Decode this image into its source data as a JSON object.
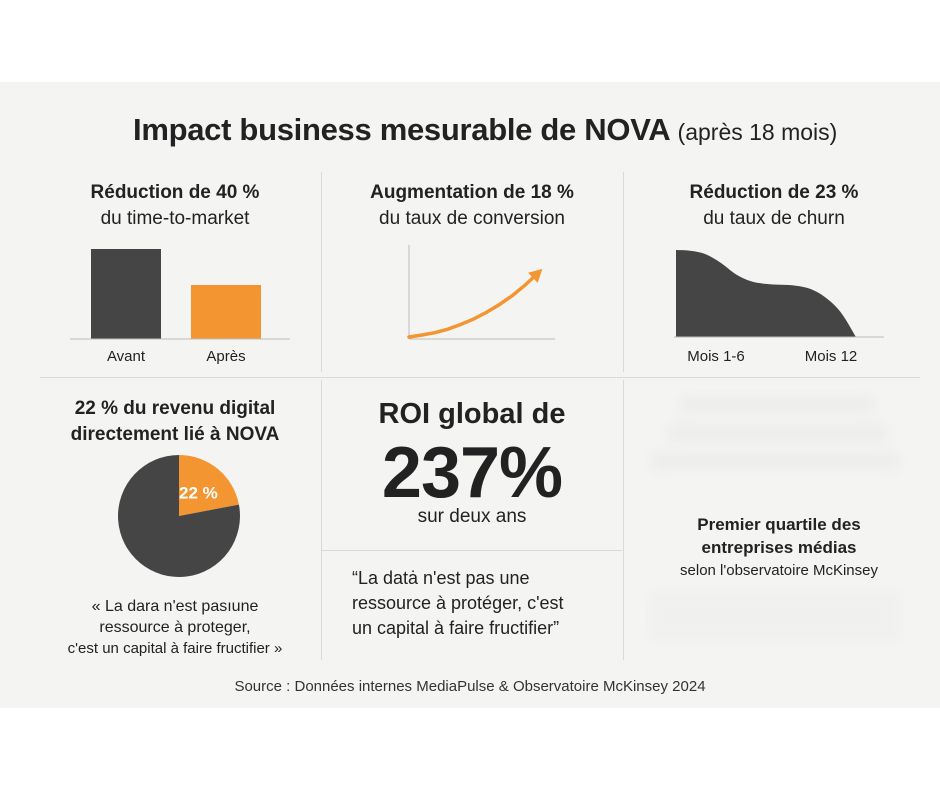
{
  "title": {
    "main": "Impact business mesurable de NOVA",
    "sub": "(après 18 mois)"
  },
  "colors": {
    "dark": "#454545",
    "orange": "#f39530",
    "panel": "#f4f4f3"
  },
  "cards": {
    "ttm": {
      "line1": "Réduction de 40 %",
      "line2": "du time-to-market"
    },
    "conversion": {
      "line1": "Augmentation de 18 %",
      "line2": "du taux de conversion"
    },
    "churn": {
      "line1": "Réduction de 23 %",
      "line2": "du taux de churn"
    },
    "revenue": {
      "line1": "22 % du revenu digital",
      "line2": "directement lié à NOVA"
    },
    "roi": {
      "label": "ROI global de",
      "value": "237%",
      "sub": "sur deux ans"
    },
    "mckinsey": {
      "line1": "Premier quartile des",
      "line2": "entreprises médias",
      "line3": "selon l'observatoire McKinsey"
    }
  },
  "quotes": {
    "left": {
      "l1": "« La dara n'est pasıune",
      "l2": "ressource à proteger,",
      "l3": "c'est un capital à faire fructifier »"
    },
    "center": {
      "l1": "“La datȧ n'est pas une",
      "l2": "ressource à protéger, c'est",
      "l3": "un capital à faire fructifier”"
    }
  },
  "source": "Source : Données internes MediaPulse & Observatoire McKinsey 2024",
  "chart_data": [
    {
      "type": "bar",
      "categories": [
        "Avant",
        "Après"
      ],
      "values": [
        100,
        60
      ],
      "colors": [
        "#454545",
        "#f39530"
      ],
      "ylim": [
        0,
        100
      ],
      "grid": false
    },
    {
      "type": "line",
      "x": [
        0,
        1,
        2,
        3,
        4,
        5,
        6,
        7,
        8,
        9,
        10
      ],
      "values": [
        0,
        0.5,
        1.1,
        2.0,
        3.2,
        4.6,
        6.3,
        8.3,
        10.6,
        13.3,
        16.4
      ],
      "ylim": [
        0,
        20
      ],
      "color": "#f39530",
      "arrow": true,
      "grid": false
    },
    {
      "type": "area",
      "categories": [
        "Mois 1-6",
        "Mois 12"
      ],
      "x": [
        0,
        1,
        2,
        3,
        4,
        5,
        6,
        7,
        8,
        9,
        10,
        11,
        12
      ],
      "values": [
        100,
        99,
        95,
        85,
        72,
        64,
        61,
        60,
        59,
        55,
        45,
        28,
        0
      ],
      "ylim": [
        0,
        100
      ],
      "color": "#454545",
      "grid": false
    },
    {
      "type": "pie",
      "slices": [
        {
          "label": "22 %",
          "value": 22,
          "color": "#f39530"
        },
        {
          "label": "",
          "value": 78,
          "color": "#454545"
        }
      ]
    }
  ]
}
